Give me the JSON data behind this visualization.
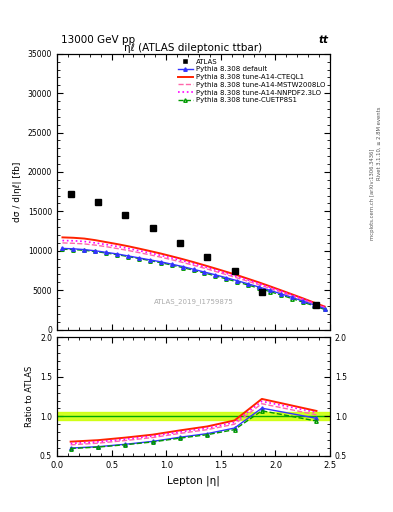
{
  "title_top": "13000 GeV pp",
  "title_top_right": "tt",
  "plot_title": "ηℓ (ATLAS dileptonic ttbar)",
  "xlabel": "Lepton |η|",
  "ylabel": "dσ / d|ηℓ| [fb]",
  "ylabel_ratio": "Ratio to ATLAS",
  "right_label_top": "Rivet 3.1.10, ≥ 2.8M events",
  "right_label_bot": "mcplots.cern.ch [arXiv:1306.3436]",
  "watermark": "ATLAS_2019_I1759875",
  "atlas_x": [
    0.125,
    0.375,
    0.625,
    0.875,
    1.125,
    1.375,
    1.625,
    1.875,
    2.375
  ],
  "atlas_y": [
    17200,
    16200,
    14600,
    12900,
    11000,
    9250,
    7400,
    4800,
    3100
  ],
  "mc_x": [
    0.05,
    0.15,
    0.25,
    0.35,
    0.45,
    0.55,
    0.65,
    0.75,
    0.85,
    0.95,
    1.05,
    1.15,
    1.25,
    1.35,
    1.45,
    1.55,
    1.65,
    1.75,
    1.85,
    1.95,
    2.05,
    2.15,
    2.25,
    2.35,
    2.45
  ],
  "default_y": [
    10300,
    10250,
    10150,
    10000,
    9800,
    9600,
    9350,
    9100,
    8850,
    8600,
    8300,
    8000,
    7650,
    7300,
    6950,
    6580,
    6200,
    5800,
    5400,
    4980,
    4540,
    4090,
    3620,
    3140,
    2660
  ],
  "cteql1_y": [
    11700,
    11650,
    11550,
    11350,
    11100,
    10850,
    10580,
    10280,
    9970,
    9650,
    9300,
    8940,
    8560,
    8160,
    7750,
    7330,
    6900,
    6440,
    5980,
    5490,
    4990,
    4480,
    3970,
    3440,
    2920
  ],
  "mstw_y": [
    11000,
    10950,
    10870,
    10720,
    10520,
    10290,
    10040,
    9770,
    9490,
    9190,
    8870,
    8520,
    8160,
    7780,
    7380,
    6970,
    6550,
    6120,
    5680,
    5220,
    4750,
    4270,
    3780,
    3280,
    2790
  ],
  "nnpdf_y": [
    11300,
    11270,
    11180,
    11000,
    10790,
    10560,
    10300,
    10020,
    9730,
    9420,
    9090,
    8730,
    8360,
    7960,
    7560,
    7140,
    6720,
    6280,
    5830,
    5360,
    4880,
    4390,
    3890,
    3380,
    2870
  ],
  "cuetp_y": [
    10200,
    10150,
    10060,
    9910,
    9720,
    9510,
    9270,
    9020,
    8760,
    8490,
    8190,
    7870,
    7530,
    7180,
    6810,
    6430,
    6050,
    5650,
    5240,
    4820,
    4390,
    3940,
    3490,
    3030,
    2560
  ],
  "ylim_main": [
    0,
    35000
  ],
  "ylim_ratio": [
    0.5,
    2.0
  ],
  "xlim": [
    0.0,
    2.5
  ],
  "yticks_main": [
    0,
    5000,
    10000,
    15000,
    20000,
    25000,
    30000,
    35000
  ],
  "yticks_ratio": [
    0.5,
    1.0,
    1.5,
    2.0
  ],
  "color_default": "#3333ff",
  "color_cteql1": "#ff2200",
  "color_mstw": "#ff66aa",
  "color_nnpdf": "#ff00ff",
  "color_cuetp": "#009900",
  "ratio_band_color": "#ccff00"
}
